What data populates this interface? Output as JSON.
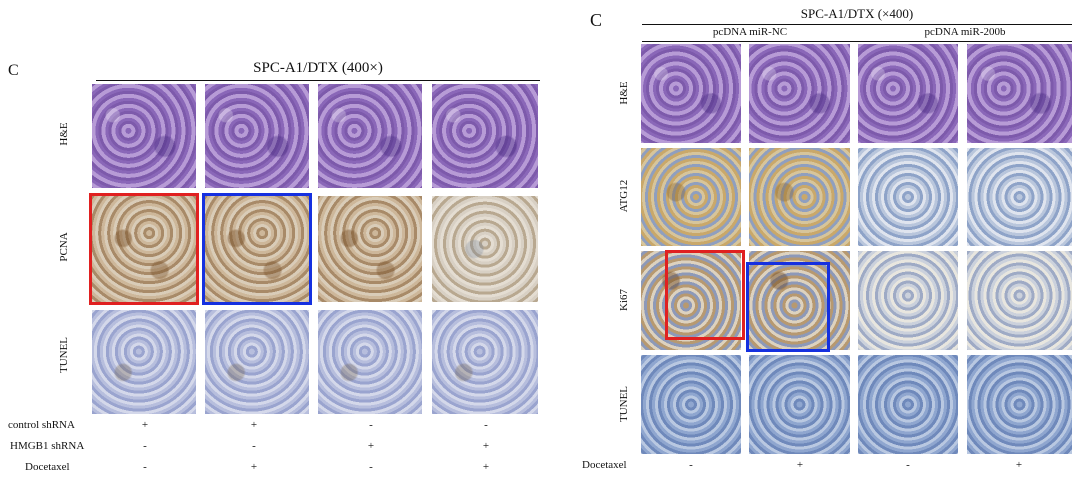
{
  "left": {
    "panel_letter": "C",
    "title": "SPC-A1/DTX (400×)",
    "row_labels": [
      "H&E",
      "PCNA",
      "TUNEL"
    ],
    "conditions": [
      {
        "label": "control shRNA",
        "values": [
          "+",
          "+",
          "-",
          "-"
        ]
      },
      {
        "label": "HMGB1 shRNA",
        "values": [
          "-",
          "-",
          "+",
          "+"
        ]
      },
      {
        "label": "Docetaxel",
        "values": [
          "-",
          "+",
          "-",
          "+"
        ]
      }
    ],
    "highlight_colors": {
      "red": "#e02020",
      "blue": "#1530e0"
    }
  },
  "right": {
    "panel_letter": "C",
    "title": "SPC-A1/DTX (×400)",
    "groups": [
      "pcDNA miR-NC",
      "pcDNA miR-200b"
    ],
    "row_labels": [
      "H&E",
      "ATG12",
      "Ki67",
      "TUNEL"
    ],
    "condition": {
      "label": "Docetaxel",
      "values": [
        "-",
        "+",
        "-",
        "+"
      ]
    },
    "highlight_colors": {
      "red": "#e02020",
      "blue": "#1530e0"
    }
  }
}
